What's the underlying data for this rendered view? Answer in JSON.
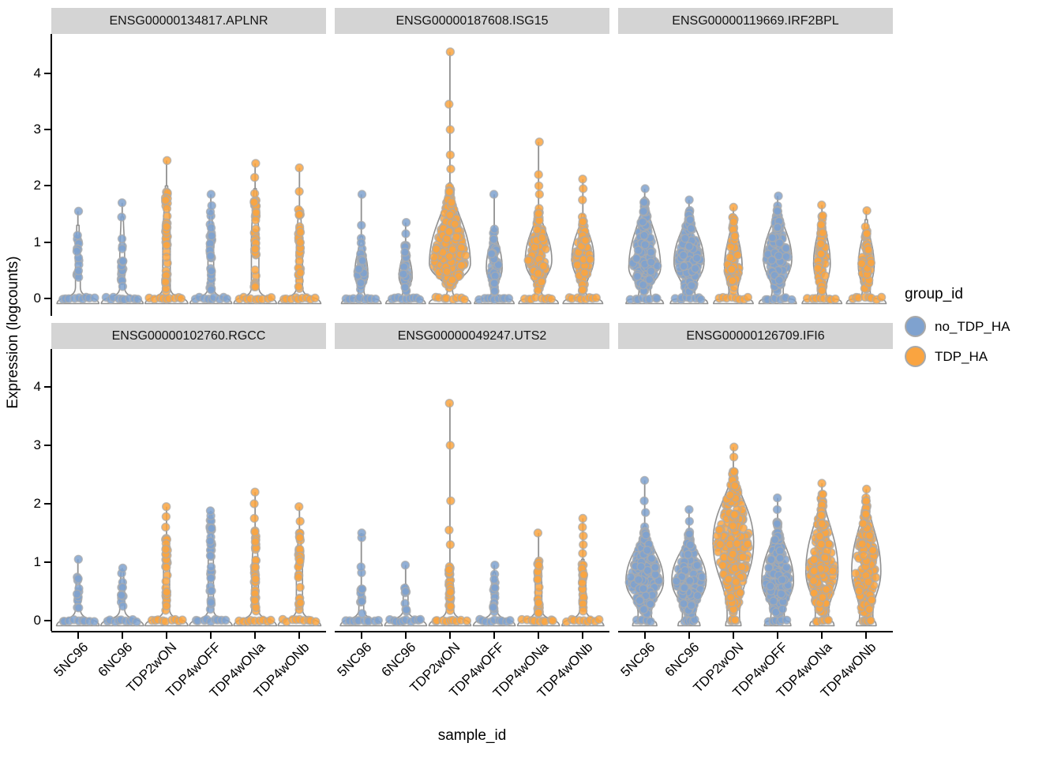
{
  "figure": {
    "xlabel": "sample_id",
    "ylabel": "Expression (logcounts)",
    "legend_title": "group_id"
  },
  "chart_data": {
    "type": "violin",
    "facet_by": "gene",
    "xlabel": "sample_id",
    "ylabel": "Expression (logcounts)",
    "y_ticks": [
      0,
      1,
      2,
      3,
      4
    ],
    "ylim": [
      0,
      4.4
    ],
    "grid": false,
    "categories": [
      "5NC96",
      "6NC96",
      "TDP2wON",
      "TDP4wOFF",
      "TDP4wONa",
      "TDP4wONb"
    ],
    "category_group_index": [
      0,
      0,
      1,
      0,
      1,
      1
    ],
    "groups": [
      {
        "name": "no_TDP_HA",
        "color": "#7FA2CF"
      },
      {
        "name": "TDP_HA",
        "color": "#FAA440"
      }
    ],
    "legend": {
      "title": "group_id",
      "position": "right",
      "entries": [
        "no_TDP_HA",
        "TDP_HA"
      ]
    },
    "style": {
      "strip_bg": "#D4D4D4",
      "violin_outline": "#909090",
      "violin_fill": "rgba(246,246,246,0.6)",
      "point_stroke": "#ABABAB",
      "axis_color": "#000000"
    },
    "facets": [
      {
        "gene": "ENSG00000134817.APLNR",
        "violins": [
          {
            "sample": "5NC96",
            "base_hw": 0.95,
            "pinch_hw": 0.11,
            "pinch_y": 0.2,
            "bulge_hw": 0.11,
            "bulge_y": 0.7,
            "body_top": 1.3,
            "ymax": 1.55,
            "outliers": [],
            "n_points": 16,
            "n_zero": 9
          },
          {
            "sample": "6NC96",
            "base_hw": 0.95,
            "pinch_hw": 0.11,
            "pinch_y": 0.2,
            "bulge_hw": 0.11,
            "bulge_y": 0.75,
            "body_top": 1.45,
            "ymax": 1.7,
            "outliers": [],
            "n_points": 18,
            "n_zero": 9
          },
          {
            "sample": "TDP2wON",
            "base_hw": 0.97,
            "pinch_hw": 0.17,
            "pinch_y": 0.2,
            "bulge_hw": 0.17,
            "bulge_y": 1.0,
            "body_top": 2.0,
            "ymax": 2.45,
            "outliers": [],
            "n_points": 42,
            "n_zero": 9
          },
          {
            "sample": "TDP4wOFF",
            "base_hw": 0.95,
            "pinch_hw": 0.13,
            "pinch_y": 0.2,
            "bulge_hw": 0.13,
            "bulge_y": 0.8,
            "body_top": 1.55,
            "ymax": 1.85,
            "outliers": [
              1.65
            ],
            "n_points": 30,
            "n_zero": 9
          },
          {
            "sample": "TDP4wONa",
            "base_hw": 0.97,
            "pinch_hw": 0.17,
            "pinch_y": 0.2,
            "bulge_hw": 0.17,
            "bulge_y": 1.0,
            "body_top": 1.95,
            "ymax": 2.4,
            "outliers": [
              2.15
            ],
            "n_points": 40,
            "n_zero": 9
          },
          {
            "sample": "TDP4wONb",
            "base_hw": 0.97,
            "pinch_hw": 0.14,
            "pinch_y": 0.2,
            "bulge_hw": 0.14,
            "bulge_y": 0.8,
            "body_top": 1.6,
            "ymax": 2.32,
            "outliers": [
              1.9
            ],
            "n_points": 30,
            "n_zero": 9
          }
        ]
      },
      {
        "gene": "ENSG00000187608.ISG15",
        "violins": [
          {
            "sample": "5NC96",
            "base_hw": 0.9,
            "pinch_hw": 0.12,
            "pinch_y": 0.14,
            "bulge_hw": 0.3,
            "bulge_y": 0.42,
            "body_top": 1.1,
            "ymax": 1.85,
            "outliers": [
              1.3
            ],
            "n_points": 50,
            "n_zero": 9
          },
          {
            "sample": "6NC96",
            "base_hw": 0.9,
            "pinch_hw": 0.12,
            "pinch_y": 0.14,
            "bulge_hw": 0.3,
            "bulge_y": 0.38,
            "body_top": 0.95,
            "ymax": 1.35,
            "outliers": [
              1.15
            ],
            "n_points": 45,
            "n_zero": 9
          },
          {
            "sample": "TDP2wON",
            "base_hw": 0.95,
            "pinch_hw": 0.12,
            "pinch_y": 0.14,
            "bulge_hw": 0.93,
            "bulge_y": 0.62,
            "body_top": 2.05,
            "ymax": 4.38,
            "outliers": [
              2.3,
              2.55,
              3.0,
              3.45
            ],
            "n_points": 240,
            "n_zero": 8
          },
          {
            "sample": "TDP4wOFF",
            "base_hw": 0.9,
            "pinch_hw": 0.12,
            "pinch_y": 0.14,
            "bulge_hw": 0.36,
            "bulge_y": 0.55,
            "body_top": 1.25,
            "ymax": 1.85,
            "outliers": [],
            "n_points": 65,
            "n_zero": 9
          },
          {
            "sample": "TDP4wONa",
            "base_hw": 0.9,
            "pinch_hw": 0.13,
            "pinch_y": 0.14,
            "bulge_hw": 0.6,
            "bulge_y": 0.68,
            "body_top": 1.6,
            "ymax": 2.78,
            "outliers": [
              1.85,
              2.0,
              2.2
            ],
            "n_points": 110,
            "n_zero": 8
          },
          {
            "sample": "TDP4wONb",
            "base_hw": 0.9,
            "pinch_hw": 0.13,
            "pinch_y": 0.14,
            "bulge_hw": 0.5,
            "bulge_y": 0.72,
            "body_top": 1.5,
            "ymax": 2.12,
            "outliers": [
              1.75,
              1.95
            ],
            "n_points": 90,
            "n_zero": 8
          }
        ]
      },
      {
        "gene": "ENSG00000119669.IRF2BPL",
        "violins": [
          {
            "sample": "5NC96",
            "base_hw": 0.85,
            "pinch_hw": 0.26,
            "pinch_y": 0.13,
            "bulge_hw": 0.72,
            "bulge_y": 0.55,
            "body_top": 1.8,
            "ymax": 1.95,
            "outliers": [],
            "n_points": 170,
            "n_zero": 8
          },
          {
            "sample": "6NC96",
            "base_hw": 0.85,
            "pinch_hw": 0.26,
            "pinch_y": 0.13,
            "bulge_hw": 0.68,
            "bulge_y": 0.65,
            "body_top": 1.6,
            "ymax": 1.75,
            "outliers": [],
            "n_points": 160,
            "n_zero": 8
          },
          {
            "sample": "TDP2wON",
            "base_hw": 0.9,
            "pinch_hw": 0.2,
            "pinch_y": 0.13,
            "bulge_hw": 0.4,
            "bulge_y": 0.55,
            "body_top": 1.45,
            "ymax": 1.62,
            "outliers": [],
            "n_points": 75,
            "n_zero": 8
          },
          {
            "sample": "TDP4wOFF",
            "base_hw": 0.85,
            "pinch_hw": 0.25,
            "pinch_y": 0.13,
            "bulge_hw": 0.64,
            "bulge_y": 0.7,
            "body_top": 1.65,
            "ymax": 1.82,
            "outliers": [],
            "n_points": 150,
            "n_zero": 8
          },
          {
            "sample": "TDP4wONa",
            "base_hw": 0.9,
            "pinch_hw": 0.18,
            "pinch_y": 0.13,
            "bulge_hw": 0.38,
            "bulge_y": 0.62,
            "body_top": 1.5,
            "ymax": 1.66,
            "outliers": [],
            "n_points": 70,
            "n_zero": 8
          },
          {
            "sample": "TDP4wONb",
            "base_hw": 0.9,
            "pinch_hw": 0.18,
            "pinch_y": 0.13,
            "bulge_hw": 0.36,
            "bulge_y": 0.58,
            "body_top": 1.4,
            "ymax": 1.56,
            "outliers": [],
            "n_points": 65,
            "n_zero": 8
          }
        ]
      },
      {
        "gene": "ENSG00000102760.RGCC",
        "violins": [
          {
            "sample": "5NC96",
            "base_hw": 0.97,
            "pinch_hw": 0.11,
            "pinch_y": 0.2,
            "bulge_hw": 0.11,
            "bulge_y": 0.45,
            "body_top": 0.78,
            "ymax": 1.05,
            "outliers": [],
            "n_points": 11,
            "n_zero": 9
          },
          {
            "sample": "6NC96",
            "base_hw": 0.97,
            "pinch_hw": 0.11,
            "pinch_y": 0.2,
            "bulge_hw": 0.11,
            "bulge_y": 0.5,
            "body_top": 0.85,
            "ymax": 0.9,
            "outliers": [],
            "n_points": 11,
            "n_zero": 9
          },
          {
            "sample": "TDP2wON",
            "base_hw": 0.97,
            "pinch_hw": 0.14,
            "pinch_y": 0.2,
            "bulge_hw": 0.14,
            "bulge_y": 0.8,
            "body_top": 1.42,
            "ymax": 1.95,
            "outliers": [
              1.6,
              1.78
            ],
            "n_points": 30,
            "n_zero": 9
          },
          {
            "sample": "TDP4wOFF",
            "base_hw": 0.97,
            "pinch_hw": 0.12,
            "pinch_y": 0.2,
            "bulge_hw": 0.12,
            "bulge_y": 0.9,
            "body_top": 1.8,
            "ymax": 1.88,
            "outliers": [],
            "n_points": 34,
            "n_zero": 9
          },
          {
            "sample": "TDP4wONa",
            "base_hw": 0.97,
            "pinch_hw": 0.15,
            "pinch_y": 0.2,
            "bulge_hw": 0.15,
            "bulge_y": 0.8,
            "body_top": 1.55,
            "ymax": 2.2,
            "outliers": [
              1.75,
              2.0
            ],
            "n_points": 34,
            "n_zero": 9
          },
          {
            "sample": "TDP4wONb",
            "base_hw": 0.97,
            "pinch_hw": 0.14,
            "pinch_y": 0.2,
            "bulge_hw": 0.14,
            "bulge_y": 0.8,
            "body_top": 1.5,
            "ymax": 1.95,
            "outliers": [
              1.7
            ],
            "n_points": 30,
            "n_zero": 9
          }
        ]
      },
      {
        "gene": "ENSG00000049247.UTS2",
        "violins": [
          {
            "sample": "5NC96",
            "base_hw": 0.95,
            "pinch_hw": 0.11,
            "pinch_y": 0.2,
            "bulge_hw": 0.11,
            "bulge_y": 0.35,
            "body_top": 0.55,
            "ymax": 1.5,
            "outliers": [
              0.82,
              0.92,
              1.42
            ],
            "n_points": 9,
            "n_zero": 10
          },
          {
            "sample": "6NC96",
            "base_hw": 0.95,
            "pinch_hw": 0.11,
            "pinch_y": 0.2,
            "bulge_hw": 0.11,
            "bulge_y": 0.4,
            "body_top": 0.62,
            "ymax": 0.95,
            "outliers": [],
            "n_points": 9,
            "n_zero": 10
          },
          {
            "sample": "TDP2wON",
            "base_hw": 0.95,
            "pinch_hw": 0.16,
            "pinch_y": 0.2,
            "bulge_hw": 0.16,
            "bulge_y": 0.55,
            "body_top": 0.95,
            "ymax": 3.72,
            "outliers": [
              1.3,
              1.55,
              2.05,
              3.0
            ],
            "n_points": 30,
            "n_zero": 9
          },
          {
            "sample": "TDP4wOFF",
            "base_hw": 0.95,
            "pinch_hw": 0.12,
            "pinch_y": 0.2,
            "bulge_hw": 0.12,
            "bulge_y": 0.5,
            "body_top": 0.82,
            "ymax": 0.95,
            "outliers": [],
            "n_points": 15,
            "n_zero": 9
          },
          {
            "sample": "TDP4wONa",
            "base_hw": 0.95,
            "pinch_hw": 0.15,
            "pinch_y": 0.2,
            "bulge_hw": 0.15,
            "bulge_y": 0.6,
            "body_top": 1.05,
            "ymax": 1.5,
            "outliers": [],
            "n_points": 26,
            "n_zero": 9
          },
          {
            "sample": "TDP4wONb",
            "base_hw": 0.95,
            "pinch_hw": 0.14,
            "pinch_y": 0.2,
            "bulge_hw": 0.14,
            "bulge_y": 0.6,
            "body_top": 1.05,
            "ymax": 1.75,
            "outliers": [
              1.15,
              1.3,
              1.45,
              1.6
            ],
            "n_points": 22,
            "n_zero": 9
          }
        ]
      },
      {
        "gene": "ENSG00000126709.IFI6",
        "violins": [
          {
            "sample": "5NC96",
            "base_hw": 0.55,
            "pinch_hw": 0.3,
            "pinch_y": 0.12,
            "bulge_hw": 0.85,
            "bulge_y": 0.68,
            "body_top": 1.62,
            "ymax": 2.4,
            "outliers": [
              1.85,
              2.05
            ],
            "n_points": 210,
            "n_zero": 6
          },
          {
            "sample": "6NC96",
            "base_hw": 0.5,
            "pinch_hw": 0.3,
            "pinch_y": 0.12,
            "bulge_hw": 0.78,
            "bulge_y": 0.7,
            "body_top": 1.52,
            "ymax": 1.9,
            "outliers": [
              1.7
            ],
            "n_points": 190,
            "n_zero": 6
          },
          {
            "sample": "TDP2wON",
            "base_hw": 0.35,
            "pinch_hw": 0.28,
            "pinch_y": 0.12,
            "bulge_hw": 0.92,
            "bulge_y": 1.35,
            "body_top": 2.6,
            "ymax": 2.97,
            "outliers": [
              2.8
            ],
            "n_points": 250,
            "n_zero": 5
          },
          {
            "sample": "TDP4wOFF",
            "base_hw": 0.6,
            "pinch_hw": 0.3,
            "pinch_y": 0.12,
            "bulge_hw": 0.72,
            "bulge_y": 0.68,
            "body_top": 1.7,
            "ymax": 2.1,
            "outliers": [
              1.9
            ],
            "n_points": 185,
            "n_zero": 7
          },
          {
            "sample": "TDP4wONa",
            "base_hw": 0.55,
            "pinch_hw": 0.3,
            "pinch_y": 0.12,
            "bulge_hw": 0.73,
            "bulge_y": 0.85,
            "body_top": 2.2,
            "ymax": 2.35,
            "outliers": [],
            "n_points": 195,
            "n_zero": 6
          },
          {
            "sample": "TDP4wONb",
            "base_hw": 0.45,
            "pinch_hw": 0.3,
            "pinch_y": 0.12,
            "bulge_hw": 0.66,
            "bulge_y": 0.85,
            "body_top": 2.12,
            "ymax": 2.25,
            "outliers": [],
            "n_points": 175,
            "n_zero": 6
          }
        ]
      }
    ]
  }
}
